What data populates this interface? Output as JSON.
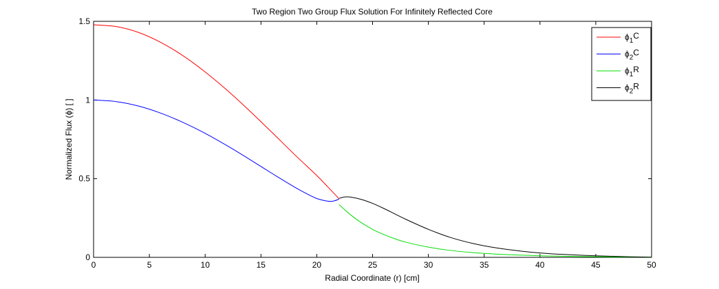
{
  "chart_data": {
    "type": "line",
    "title": "Two Region Two Group Flux Solution For Infinitely Reflected Core",
    "xlabel": "Radial Coordinate (r) [cm]",
    "ylabel": "Normalized Flux (ϕ) [ ]",
    "xlim": [
      0,
      50
    ],
    "ylim": [
      0,
      1.5
    ],
    "grid": false,
    "legend_position": "top-right",
    "x_ticks": [
      0,
      5,
      10,
      15,
      20,
      25,
      30,
      35,
      40,
      45,
      50
    ],
    "x_tick_labels": [
      "0",
      "5",
      "10",
      "15",
      "20",
      "25",
      "30",
      "35",
      "40",
      "45",
      "50"
    ],
    "y_ticks": [
      0,
      0.5,
      1,
      1.5
    ],
    "y_tick_labels": [
      "0",
      "0.5",
      "1",
      "1.5"
    ],
    "series": [
      {
        "name": "ϕ1C",
        "legend": {
          "phi": "ϕ",
          "sub": "1",
          "suffix": "C"
        },
        "color": "#ff0000",
        "x": [
          0,
          2,
          4,
          6,
          8,
          10,
          12,
          14,
          16,
          18,
          20,
          21,
          22
        ],
        "y": [
          1.478,
          1.467,
          1.43,
          1.367,
          1.282,
          1.178,
          1.06,
          0.93,
          0.793,
          0.654,
          0.52,
          0.447,
          0.372
        ]
      },
      {
        "name": "ϕ2C",
        "legend": {
          "phi": "ϕ",
          "sub": "2",
          "suffix": "C"
        },
        "color": "#0000ff",
        "x": [
          0,
          2,
          4,
          6,
          8,
          10,
          12,
          14,
          16,
          18,
          19,
          20,
          21,
          21.5,
          22
        ],
        "y": [
          1.0,
          0.99,
          0.962,
          0.917,
          0.858,
          0.788,
          0.708,
          0.622,
          0.533,
          0.447,
          0.408,
          0.374,
          0.357,
          0.358,
          0.37
        ]
      },
      {
        "name": "ϕ1R",
        "legend": {
          "phi": "ϕ",
          "sub": "1",
          "suffix": "R"
        },
        "color": "#00dd00",
        "x": [
          22,
          23,
          24,
          25,
          26,
          27,
          28,
          30,
          32,
          34,
          36,
          38,
          40,
          42,
          45,
          48,
          50
        ],
        "y": [
          0.335,
          0.272,
          0.22,
          0.178,
          0.145,
          0.118,
          0.096,
          0.065,
          0.044,
          0.03,
          0.021,
          0.015,
          0.01,
          0.007,
          0.004,
          0.002,
          0.001
        ]
      },
      {
        "name": "ϕ2R",
        "legend": {
          "phi": "ϕ",
          "sub": "2",
          "suffix": "R"
        },
        "color": "#000000",
        "x": [
          22,
          22.5,
          23,
          24,
          25,
          26,
          27,
          28,
          30,
          32,
          34,
          36,
          38,
          40,
          42,
          45,
          48,
          50
        ],
        "y": [
          0.375,
          0.384,
          0.383,
          0.368,
          0.343,
          0.311,
          0.276,
          0.241,
          0.178,
          0.126,
          0.088,
          0.061,
          0.042,
          0.028,
          0.019,
          0.01,
          0.004,
          0.001
        ]
      }
    ]
  }
}
